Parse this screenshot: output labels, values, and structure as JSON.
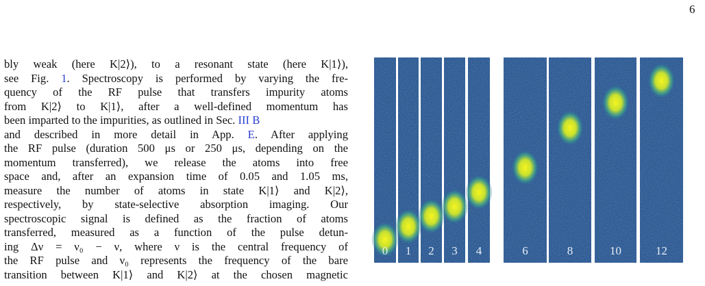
{
  "page_number": "6",
  "body": {
    "lines": [
      [
        "bly weak (here K|2⟩), to a resonant state (here K|1⟩),"
      ],
      [
        "see Fig. ",
        {
          "text": "1",
          "link": true
        },
        ". Spectroscopy is performed by varying the fre-"
      ],
      [
        "quency of the RF pulse that transfers impurity atoms"
      ],
      [
        "from K|2⟩ to K|1⟩, after a well-defined momentum has"
      ],
      [
        "been imparted to the impurities, as outlined in Sec. ",
        {
          "text": "III B",
          "link": true
        }
      ],
      [
        "and described in more detail in App. ",
        {
          "text": "E",
          "link": true
        },
        ". After applying"
      ],
      [
        "the RF pulse (duration 500 μs or 250 μs, depending on the"
      ],
      [
        "momentum transferred), we release the atoms into free"
      ],
      [
        "space and, after an expansion time of 0.05 and 1.05 ms,"
      ],
      [
        "measure the number of atoms in state K|1⟩ and K|2⟩,"
      ],
      [
        "respectively, by state-selective absorption imaging. Our"
      ],
      [
        "spectroscopic signal is defined as the fraction of atoms"
      ],
      [
        "transferred, measured as a function of the pulse detun-"
      ],
      [
        "ing Δν = ν₀ − ν, where ν is the central frequency of"
      ],
      [
        "the RF pulse and ν₀ represents the frequency of the bare"
      ],
      [
        "transition between K|1⟩ and K|2⟩ at the chosen magnetic"
      ]
    ]
  },
  "figure": {
    "panel_labels": [
      "0",
      "1",
      "2",
      "3",
      "4",
      "6",
      "8",
      "10",
      "12"
    ]
  }
}
